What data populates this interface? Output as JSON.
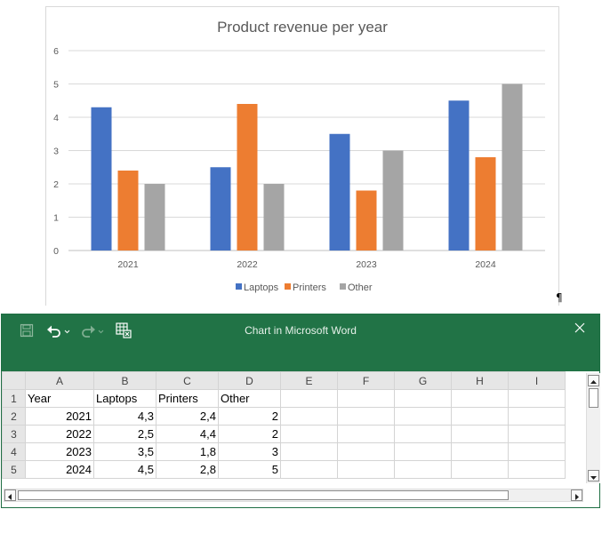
{
  "chart_data": {
    "type": "bar",
    "title": "Product revenue per year",
    "categories": [
      "2021",
      "2022",
      "2023",
      "2024"
    ],
    "series": [
      {
        "name": "Laptops",
        "values": [
          4.3,
          2.5,
          3.5,
          4.5
        ],
        "color": "#4472c4"
      },
      {
        "name": "Printers",
        "values": [
          2.4,
          4.4,
          1.8,
          2.8
        ],
        "color": "#ed7d31"
      },
      {
        "name": "Other",
        "values": [
          2,
          2,
          3,
          5
        ],
        "color": "#a5a5a5"
      }
    ],
    "yticks": [
      "0",
      "1",
      "2",
      "3",
      "4",
      "5",
      "6"
    ],
    "ylim": [
      0,
      6
    ],
    "grid": true,
    "legend_position": "bottom"
  },
  "excel": {
    "window_title": "Chart in Microsoft Word",
    "column_headers": [
      "A",
      "B",
      "C",
      "D",
      "E",
      "F",
      "G",
      "H",
      "I"
    ],
    "row_headers": [
      "1",
      "2",
      "3",
      "4",
      "5"
    ],
    "rows": [
      [
        "Year",
        "Laptops",
        "Printers",
        "Other"
      ],
      [
        "2021",
        "4,3",
        "2,4",
        "2"
      ],
      [
        "2022",
        "2,5",
        "4,4",
        "2"
      ],
      [
        "2023",
        "3,5",
        "1,8",
        "3"
      ],
      [
        "2024",
        "4,5",
        "2,8",
        "5"
      ]
    ],
    "icons": {
      "save": "save-icon",
      "undo": "undo-icon",
      "redo": "redo-icon",
      "edit_data": "edit-data-icon",
      "close": "close-icon"
    },
    "ribbon_color": "#217346"
  }
}
